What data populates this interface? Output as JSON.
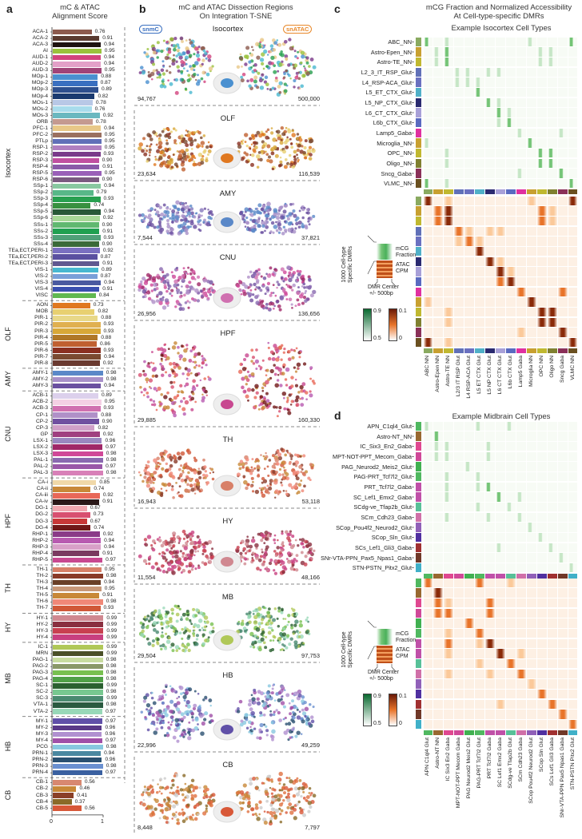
{
  "panel_a": {
    "letter": "a",
    "title_line1": "mC & ATAC",
    "title_line2": "Alignment Score"
  },
  "panel_b": {
    "letter": "b",
    "title_line1": "mC and ATAC Dissection Regions",
    "title_line2": "On Integration T-SNE",
    "badge_left": "snmC",
    "badge_right": "snATAC",
    "badge_left_color": "#3a6fc0",
    "badge_right_color": "#e8882a",
    "regions": [
      {
        "name": "Isocortex",
        "left_count": "94,767",
        "right_count": "500,000",
        "palette": [
          "#4a90d0",
          "#9ac23c",
          "#d2447e",
          "#28a050",
          "#7a3a8a",
          "#48b8d0",
          "#e8c888",
          "#8c5a4e"
        ]
      },
      {
        "name": "OLF",
        "left_count": "23,634",
        "right_count": "116,539",
        "palette": [
          "#e07820",
          "#e8d070",
          "#d8a838",
          "#8a3020",
          "#7a4a30",
          "#c06030"
        ]
      },
      {
        "name": "AMY",
        "left_count": "7,544",
        "right_count": "37,821",
        "palette": [
          "#5a88c8",
          "#a890c8",
          "#6a50a0"
        ]
      },
      {
        "name": "CNU",
        "left_count": "26,956",
        "right_count": "136,656",
        "palette": [
          "#d070b0",
          "#7050a0",
          "#a02868",
          "#d04898",
          "#8a6ab0",
          "#b090c8"
        ]
      },
      {
        "name": "HPF",
        "left_count": "29,885",
        "right_count": "160,330",
        "palette": [
          "#c84890",
          "#b85ab0",
          "#e86858",
          "#701818",
          "#c88838",
          "#d85070"
        ]
      },
      {
        "name": "TH",
        "left_count": "16,943",
        "right_count": "53,118",
        "palette": [
          "#d88068",
          "#8a3a28",
          "#c88838",
          "#f08878",
          "#d05838"
        ]
      },
      {
        "name": "HY",
        "left_count": "11,554",
        "right_count": "48,166",
        "palette": [
          "#d08890",
          "#8a3040",
          "#c84050",
          "#c84080"
        ]
      },
      {
        "name": "MB",
        "left_count": "29,504",
        "right_count": "97,753",
        "palette": [
          "#b0c858",
          "#78c050",
          "#2a6030",
          "#4a8a70",
          "#98d8b8"
        ]
      },
      {
        "name": "HB",
        "left_count": "22,996",
        "right_count": "49,259",
        "palette": [
          "#6050a8",
          "#b090d0",
          "#a050a8",
          "#88c8e0",
          "#2a5070",
          "#6a90d0"
        ]
      },
      {
        "name": "CB",
        "left_count": "8,448",
        "right_count": "7,797",
        "palette": [
          "#d85838",
          "#e07040",
          "#c88838",
          "#8a6a28",
          "#cccccc"
        ]
      }
    ]
  },
  "panel_c": {
    "letter": "c",
    "title_line1": "mCG Fraction and Normalized Accessibility",
    "title_line2": "At Cell-type-specific DMRs",
    "subtitle": "Example Isocortex Cell Types"
  },
  "panel_d": {
    "letter": "d",
    "subtitle": "Example Midbrain Cell Types"
  },
  "legend": {
    "side_label_line1": "1000 Cell-type",
    "side_label_line2": "Specific DMRs",
    "mcg_line1": "mCG",
    "mcg_line2": "Fraction",
    "atac_line1": "ATAC",
    "atac_line2": "CPM",
    "center_line1": "DMR Center",
    "center_line2": "+/- 500bp",
    "green_max": "0.9",
    "green_min": "0.5",
    "orange_max": "0.1",
    "orange_min": "0"
  },
  "chart_data": [
    {
      "type": "bar",
      "orientation": "horizontal",
      "title": "mC & ATAC Alignment Score",
      "xlim": [
        0,
        1
      ],
      "xticks": [
        "0",
        "1"
      ],
      "groups": [
        {
          "name": "Isocortex",
          "bars": [
            [
              "ACA-1",
              0.76,
              "#8c5a4e"
            ],
            [
              "ACA-2",
              0.91,
              "#5a3a30"
            ],
            [
              "ACA-3",
              0.94,
              "#1e1210"
            ],
            [
              "AI",
              0.95,
              "#9ac23c"
            ],
            [
              "AUD-1",
              0.94,
              "#d2447e"
            ],
            [
              "AUD-2",
              0.94,
              "#e3a0c8"
            ],
            [
              "AUD-3",
              0.95,
              "#a04478"
            ],
            [
              "MOp-1",
              0.88,
              "#4a90d0"
            ],
            [
              "MOp-2",
              0.87,
              "#3a6fc0"
            ],
            [
              "MOp-3",
              0.89,
              "#2e4f8e"
            ],
            [
              "MOp-4",
              0.82,
              "#1a3a70"
            ],
            [
              "MOs-1",
              0.78,
              "#b8c8e6"
            ],
            [
              "MOs-2",
              0.76,
              "#a8dcec"
            ],
            [
              "MOs-3",
              0.92,
              "#6ab8c0"
            ],
            [
              "ORB",
              0.78,
              "#c49a90"
            ],
            [
              "PFC-1",
              0.94,
              "#e8c888"
            ],
            [
              "PFC-2",
              0.95,
              "#9a7060"
            ],
            [
              "PTLp",
              0.95,
              "#6070b8"
            ],
            [
              "RSP-1",
              0.95,
              "#b080c0"
            ],
            [
              "RSP-2",
              0.93,
              "#7a3a8a"
            ],
            [
              "RSP-3",
              0.9,
              "#c050a0"
            ],
            [
              "RSP-4",
              0.91,
              "#8a5aa8"
            ],
            [
              "RSP-5",
              0.95,
              "#9a60b8"
            ],
            [
              "RSP-6",
              0.9,
              "#7a5a80"
            ],
            [
              "SSp-1",
              0.94,
              "#88c8a0"
            ],
            [
              "SSp-2",
              0.79,
              "#58b888"
            ],
            [
              "SSp-3",
              0.93,
              "#28a050"
            ],
            [
              "SSp-4",
              0.74,
              "#389040"
            ],
            [
              "SSp-5",
              0.94,
              "#285838"
            ],
            [
              "SSp-6",
              0.92,
              "#a8d898"
            ],
            [
              "SSs-1",
              0.9,
              "#60b870"
            ],
            [
              "SSs-2",
              0.91,
              "#20a050"
            ],
            [
              "SSs-3",
              0.93,
              "#50a078"
            ],
            [
              "SSs-4",
              0.9,
              "#3a6a38"
            ],
            [
              "TEa,ECT,PERI-1",
              0.92,
              "#7a70c0"
            ],
            [
              "TEa,ECT,PERI-2",
              0.87,
              "#5a50a0"
            ],
            [
              "TEa,ECT,PERI-3",
              0.91,
              "#605890"
            ],
            [
              "VIS-1",
              0.89,
              "#48b8d0"
            ],
            [
              "VIS-2",
              0.87,
              "#7aa0d8"
            ],
            [
              "VIS-3",
              0.94,
              "#4a5aa0"
            ],
            [
              "VIS-4",
              0.91,
              "#3a50b0"
            ],
            [
              "VISC",
              0.84,
              "#60b850"
            ]
          ]
        },
        {
          "name": "OLF",
          "bars": [
            [
              "AON",
              0.73,
              "#e07820"
            ],
            [
              "MOB",
              0.82,
              "#e8d070"
            ],
            [
              "PIR-1",
              0.88,
              "#e8d888"
            ],
            [
              "PIR-2",
              0.93,
              "#e0b050"
            ],
            [
              "PIR-3",
              0.93,
              "#d8a838"
            ],
            [
              "PIR-4",
              0.88,
              "#b07828"
            ],
            [
              "PIR-5",
              0.86,
              "#c06030"
            ],
            [
              "PIR-6",
              0.93,
              "#8a3020"
            ],
            [
              "PIR-7",
              0.94,
              "#7a4a30"
            ],
            [
              "PIR-8",
              0.92,
              "#6a3a30"
            ]
          ]
        },
        {
          "name": "AMY",
          "bars": [
            [
              "AMY-1",
              0.98,
              "#5a88c8"
            ],
            [
              "AMY-2",
              0.98,
              "#a890c8"
            ],
            [
              "AMY-3",
              0.94,
              "#6a50a0"
            ]
          ]
        },
        {
          "name": "CNU",
          "bars": [
            [
              "ACB-1",
              0.89,
              "#dcd0ec"
            ],
            [
              "ACB-2",
              0.95,
              "#f4d0e4"
            ],
            [
              "ACB-3",
              0.93,
              "#d070b0"
            ],
            [
              "CP-1",
              0.88,
              "#b090c8"
            ],
            [
              "CP-2",
              0.9,
              "#7050a0"
            ],
            [
              "CP-3",
              0.82,
              "#d0a0c8"
            ],
            [
              "GP",
              0.92,
              "#a04080"
            ],
            [
              "LSX-1",
              0.96,
              "#9a88c0"
            ],
            [
              "LSX-2",
              0.97,
              "#a02868"
            ],
            [
              "LSX-3",
              0.98,
              "#d04898"
            ],
            [
              "PAL-1",
              0.98,
              "#8a6ab0"
            ],
            [
              "PAL-2",
              0.97,
              "#9a58a8"
            ],
            [
              "PAL-3",
              0.98,
              "#d880b8"
            ]
          ]
        },
        {
          "name": "HPF",
          "bars": [
            [
              "CA-i",
              0.85,
              "#f0d8a8"
            ],
            [
              "CA-ii",
              0.74,
              "#c88838"
            ],
            [
              "CA-iii",
              0.92,
              "#e86858"
            ],
            [
              "CA-iv",
              0.91,
              "#2a1818"
            ],
            [
              "DG-1",
              0.67,
              "#f0a8b0"
            ],
            [
              "DG-2",
              0.73,
              "#d85070"
            ],
            [
              "DG-3",
              0.67,
              "#c83838"
            ],
            [
              "DG-4",
              0.74,
              "#701818"
            ],
            [
              "RHP-1",
              0.92,
              "#8a3a88"
            ],
            [
              "RHP-2",
              0.94,
              "#b85ab0"
            ],
            [
              "RHP-3",
              0.94,
              "#d8a0c8"
            ],
            [
              "RHP-4",
              0.91,
              "#7a3a60"
            ],
            [
              "RHP-5",
              0.97,
              "#c84890"
            ]
          ]
        },
        {
          "name": "TH",
          "bars": [
            [
              "TH-1",
              0.95,
              "#d88068"
            ],
            [
              "TH-2",
              0.98,
              "#8a3a28"
            ],
            [
              "TH-3",
              0.94,
              "#6a4028"
            ],
            [
              "TH-4",
              0.95,
              "#c89878"
            ],
            [
              "TH-5",
              0.91,
              "#c88838"
            ],
            [
              "TH-6",
              0.98,
              "#f08878"
            ],
            [
              "TH-7",
              0.93,
              "#d05838"
            ]
          ]
        },
        {
          "name": "HY",
          "bars": [
            [
              "HY-1",
              0.99,
              "#d08890"
            ],
            [
              "HY-2",
              0.99,
              "#8a3040"
            ],
            [
              "HY-3",
              0.99,
              "#c84050"
            ],
            [
              "HY-4",
              0.99,
              "#c84080"
            ]
          ]
        },
        {
          "name": "MB",
          "bars": [
            [
              "IC-1",
              0.99,
              "#b0c858"
            ],
            [
              "MRN",
              0.99,
              "#4a5028"
            ],
            [
              "PAG-1",
              0.98,
              "#c8dca0"
            ],
            [
              "PAG-2",
              0.98,
              "#8a9868"
            ],
            [
              "PAG-3",
              0.98,
              "#78c050"
            ],
            [
              "PAG-4",
              0.98,
              "#50a048"
            ],
            [
              "SC-1",
              0.99,
              "#2a6030"
            ],
            [
              "SC-2",
              0.98,
              "#78c890"
            ],
            [
              "SC-3",
              0.99,
              "#4a8a70"
            ],
            [
              "VTA-1",
              0.98,
              "#2a5a40"
            ],
            [
              "VTA-2",
              0.97,
              "#98d8b8"
            ]
          ]
        },
        {
          "name": "HB",
          "bars": [
            [
              "MY-1",
              0.97,
              "#6050a8"
            ],
            [
              "MY-2",
              0.96,
              "#5a3a88"
            ],
            [
              "MY-3",
              0.96,
              "#b090d0"
            ],
            [
              "MY-4",
              0.97,
              "#a050a8"
            ],
            [
              "PCG",
              0.98,
              "#88c8e0"
            ],
            [
              "PRN-1",
              0.94,
              "#4a88a0"
            ],
            [
              "PRN-2",
              0.96,
              "#2a5070"
            ],
            [
              "PRN-3",
              0.98,
              "#6a90d0"
            ],
            [
              "PRN-4",
              0.97,
              "#3a60a0"
            ]
          ]
        },
        {
          "name": "CB",
          "bars": [
            [
              "CB-1",
              0.56,
              "#d88870"
            ],
            [
              "CB-2",
              0.46,
              "#c88838"
            ],
            [
              "CB-3",
              0.41,
              "#8a4028"
            ],
            [
              "CB-4",
              0.37,
              "#8a6a28"
            ],
            [
              "CB-5",
              0.56,
              "#d85838"
            ]
          ]
        }
      ]
    },
    {
      "type": "heatmap",
      "title": "Example Isocortex Cell Types",
      "value_scale": "0-3 relative signal (estimated)",
      "row_labels": [
        "ABC_NN",
        "Astro-Epen_NN",
        "Astro-TE_NN",
        "L2_3_IT_RSP_Glut",
        "L4_RSP-ACA_Glut",
        "L5_ET_CTX_Glut",
        "L5_NP_CTX_Glut",
        "L6_CT_CTX_Glut",
        "L6b_CTX_Glut",
        "Lamp5_Gaba",
        "Microglia_NN",
        "OPC_NN",
        "Oligo_NN",
        "Sncg_Gaba",
        "VLMC_NN"
      ],
      "col_labels": [
        "ABC NN",
        "Astro-Epen NN",
        "Astro-TE NN",
        "L2/3 IT RSP Glut",
        "L4 RSP-ACA Glut",
        "L5 ET CTX Glut",
        "L5 NP CTX Glut",
        "L6 CT CTX Glut",
        "L6b CTX Glut",
        "Lamp5 Gaba",
        "Microglia NN",
        "OPC NN",
        "Oligo NN",
        "Sncg Gaba",
        "VLMC NN"
      ],
      "colors": [
        "#8aaa60",
        "#c8a030",
        "#c0b830",
        "#6070b8",
        "#6a70c0",
        "#50b0c8",
        "#2a2a70",
        "#a8a0d8",
        "#5a6ac0",
        "#e030a0",
        "#c8a030",
        "#c0b830",
        "#808030",
        "#8a3058",
        "#6a5020"
      ],
      "matrix": [
        "301000000010003",
        "023000000002100",
        "023000000002100",
        "000210110000000",
        "000121000000000",
        "000003000000000",
        "000000310000000",
        "000000031000000",
        "000000023000000",
        "000000000200020",
        "100000000030000",
        "001000000003300",
        "001000000003300",
        "000000000100030",
        "301000000000003"
      ]
    },
    {
      "type": "heatmap",
      "title": "Example Midbrain Cell Types",
      "value_scale": "0-3 relative signal (estimated)",
      "row_labels": [
        "APN_C1ql4_Glut",
        "Astro-NT_NN",
        "IC_Six3_En2_Gaba",
        "MPT-NOT-PPT_Mecom_Gaba",
        "PAG_Neurod2_Meis2_Glut",
        "PAG-PRT_Tcf7l2_Glut",
        "PRT_Tcf7l2_Gaba",
        "SC_Lef1_Emx2_Gaba",
        "SCdg-ve_Tfap2b_Glut",
        "SCm_Cdh23_Gaba",
        "SCop_Pou4f2_Neurod2_Glut",
        "SCop_Sln_Glut",
        "SCs_Lef1_Gli3_Gaba",
        "SNr-VTA-PPN_Pax5_Npas1_Gaba",
        "STN-PSTN_Pitx2_Glut"
      ],
      "col_labels": [
        "APN C1ql4 Glut",
        "Astro-NT NN",
        "IC Six3 En2 Gaba",
        "MPT-NOT-PPT Mecom Gaba",
        "PAG Neurod2 Meis2 Glut",
        "PAG-PRT Tcf7l2 Glut",
        "PRT Tcf7l2 Gaba",
        "SC Lef1 Emx2 Gaba",
        "SCdg-ve Tfap2b Glut",
        "SCm Cdh23 Gaba",
        "SCop Pou4f2 Neurod2 Glut",
        "SCop Sln Glut",
        "SCs Lef1 Gli3 Gaba",
        "SNr-VTA-PPN Pax5 Npas1 Gaba",
        "STN-PSTN Pitx2 Glut"
      ],
      "colors": [
        "#50b860",
        "#986830",
        "#e04890",
        "#d04898",
        "#40b050",
        "#50b860",
        "#c050a8",
        "#c050a8",
        "#58c098",
        "#d070a8",
        "#9060b8",
        "#5030a0",
        "#a03030",
        "#703828",
        "#40b0c8"
      ],
      "matrix": [
        "200002001000000",
        "030000000000000",
        "021000200000000",
        "022000200000000",
        "000020000000000",
        "001002000000000",
        "002001300000000",
        "001000030100000",
        "000001002000000",
        "001000100200000",
        "000000000010000",
        "000000000002000",
        "000000010000200",
        "000000000000020",
        "000000000000002"
      ]
    }
  ]
}
